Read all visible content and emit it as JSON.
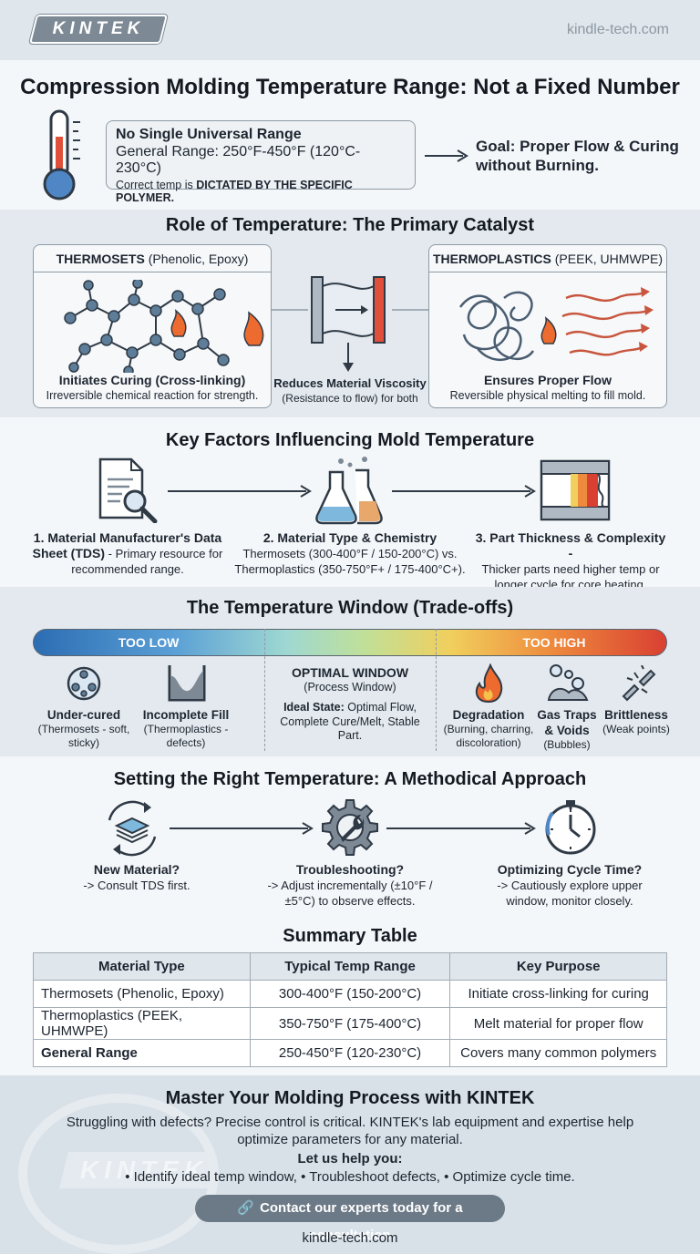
{
  "header": {
    "logo": "KINTEK",
    "site": "kindle-tech.com"
  },
  "intro": {
    "title": "Compression Molding Temperature Range: Not a Fixed Number",
    "callout_title": "No Single Universal Range",
    "callout_range": "General Range: 250°F-450°F (120°C-230°C)",
    "callout_note_a": "Correct temp is ",
    "callout_note_b": "DICTATED BY THE SPECIFIC POLYMER.",
    "goal_line1": "Goal: Proper Flow & Curing",
    "goal_line2": "without Burning."
  },
  "role": {
    "title": "Role of Temperature: The Primary Catalyst",
    "thermosets_name": "THERMOSETS",
    "thermosets_examples": " (Phenolic, Epoxy)",
    "thermosets_cap_title": "Initiates Curing (Cross-linking)",
    "thermosets_cap_text": "Irreversible chemical reaction for strength.",
    "center_cap_title": "Reduces Material Viscosity",
    "center_cap_text": "(Resistance to flow) for both",
    "thermoplastics_name": "THERMOPLASTICS",
    "thermoplastics_examples": " (PEEK, UHMWPE)",
    "thermoplastics_cap_title": "Ensures Proper Flow",
    "thermoplastics_cap_text": "Reversible physical melting to fill mold."
  },
  "factors": {
    "title": "Key Factors Influencing Mold Temperature",
    "f1_title": "1. Material Manufacturer's Data Sheet (TDS)",
    "f1_text": " - Primary resource for recommended range.",
    "f2_title": "2. Material Type & Chemistry",
    "f2_text": "Thermosets (300-400°F / 150-200°C) vs. Thermoplastics (350-750°F+ / 175-400°C+).",
    "f3_title": "3. Part Thickness & Complexity -",
    "f3_text": "Thicker parts need higher temp or longer cycle for core heating."
  },
  "window": {
    "title": "The Temperature Window (Trade-offs)",
    "too_low": "TOO LOW",
    "too_high": "TOO HIGH",
    "optimal_title": "OPTIMAL WINDOW",
    "optimal_sub": "(Process Window)",
    "ideal_label": "Ideal State:",
    "ideal_text": " Optimal Flow, Complete Cure/Melt, Stable Part.",
    "items": [
      {
        "title": "Under-cured",
        "text": "(Thermosets - soft, sticky)"
      },
      {
        "title": "Incomplete Fill",
        "text": "(Thermoplastics - defects)"
      },
      {
        "title": "Degradation",
        "text": "(Burning, charring, discoloration)"
      },
      {
        "title": "Gas Traps & Voids",
        "text": "(Bubbles)"
      },
      {
        "title": "Brittleness",
        "text": "(Weak points)"
      }
    ]
  },
  "method": {
    "title": "Setting the Right Temperature: A Methodical Approach",
    "s1_title": "New Material?",
    "s1_text": "-> Consult TDS first.",
    "s2_title": "Troubleshooting?",
    "s2_text": "-> Adjust incrementally (±10°F / ±5°C) to observe effects.",
    "s3_title": "Optimizing Cycle Time?",
    "s3_text": "-> Cautiously explore upper window, monitor closely."
  },
  "table": {
    "title": "Summary Table",
    "headers": [
      "Material Type",
      "Typical Temp Range",
      "Key Purpose"
    ],
    "rows": [
      [
        "Thermosets (Phenolic, Epoxy)",
        "300-400°F (150-200°C)",
        "Initiate cross-linking for curing"
      ],
      [
        "Thermoplastics (PEEK, UHMWPE)",
        "350-750°F (175-400°C)",
        "Melt material for proper flow"
      ],
      [
        "General Range",
        "250-450°F (120-230°C)",
        "Covers many common polymers"
      ]
    ]
  },
  "cta": {
    "title": "Master Your Molding Process with KINTEK",
    "text": "Struggling with defects? Precise control is critical. KINTEK's lab equipment and expertise help optimize parameters for any material.",
    "help_label": "Let us help you:",
    "bullets": "• Identify ideal temp window, • Troubleshoot defects, • Optimize cycle time.",
    "button": "Contact our experts today for a consultation",
    "site": "kindle-tech.com",
    "watermark": "KINTEK"
  },
  "colors": {
    "accent": "#6c7986",
    "hot": "#d94032",
    "cold": "#2c6db3",
    "node": "#5d7d98"
  }
}
